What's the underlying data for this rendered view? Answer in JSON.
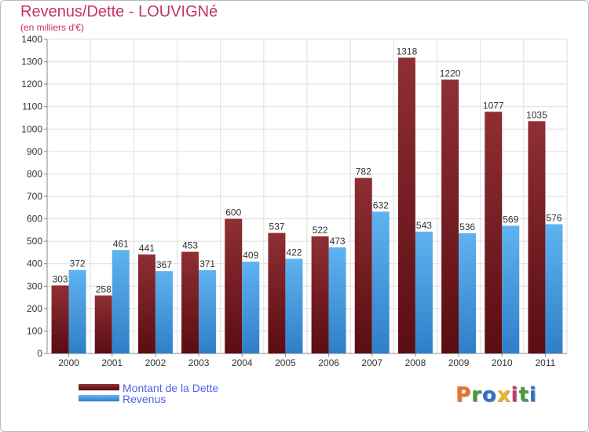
{
  "header": {
    "title": "Revenus/Dette - LOUVIGNé",
    "subtitle": "(en milliers d'€)"
  },
  "legend": {
    "items": [
      {
        "label": "Montant de la Dette",
        "color": "#7a1f24"
      },
      {
        "label": "Revenus",
        "color": "#4aa3e8"
      }
    ]
  },
  "logo": {
    "text": "Proxiti",
    "colors": [
      "#e8732a",
      "#4a9a3a",
      "#2f6fd0",
      "#e8b72a",
      "#c23a6a",
      "#4a9a3a",
      "#2f6fd0"
    ]
  },
  "chart_data": {
    "type": "bar",
    "categories": [
      "2000",
      "2001",
      "2002",
      "2003",
      "2004",
      "2005",
      "2006",
      "2007",
      "2008",
      "2009",
      "2010",
      "2011"
    ],
    "series": [
      {
        "name": "Montant de la Dette",
        "values": [
          303,
          258,
          441,
          453,
          600,
          537,
          522,
          782,
          1318,
          1220,
          1077,
          1035
        ],
        "color": "#7a1f24"
      },
      {
        "name": "Revenus",
        "values": [
          372,
          461,
          367,
          371,
          409,
          422,
          473,
          632,
          543,
          536,
          569,
          576
        ],
        "color": "#4aa3e8"
      }
    ],
    "ylim": [
      0,
      1400
    ],
    "yticks": [
      0,
      100,
      200,
      300,
      400,
      500,
      600,
      700,
      800,
      900,
      1000,
      1100,
      1200,
      1300,
      1400
    ],
    "grid": true,
    "legend_position": "bottom-left",
    "title": "Revenus/Dette - LOUVIGNé",
    "ylabel": "(en milliers d'€)",
    "xlabel": ""
  }
}
